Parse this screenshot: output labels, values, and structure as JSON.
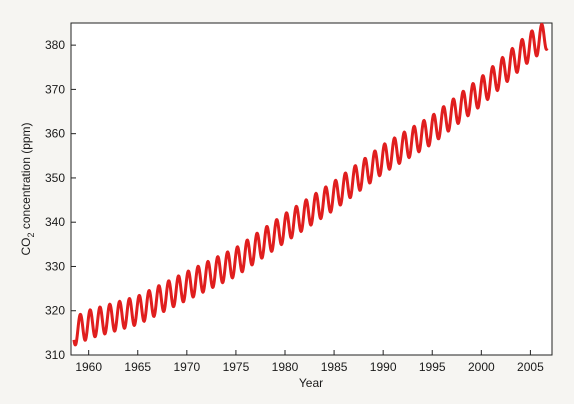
{
  "chart_data": {
    "type": "line",
    "title": "",
    "xlabel": "Year",
    "ylabel_main": "CO",
    "ylabel_sub": "2",
    "ylabel_rest": " concentration (ppm)",
    "xlim": [
      1958.2,
      2007.2
    ],
    "ylim": [
      310,
      385
    ],
    "xticks": [
      1960,
      1965,
      1970,
      1975,
      1980,
      1985,
      1990,
      1995,
      2000,
      2005
    ],
    "yticks": [
      310,
      320,
      330,
      340,
      350,
      360,
      370,
      380
    ],
    "grid": false,
    "line_color": "#e01e1e",
    "series": [
      {
        "x": [
          1958.5,
          1960,
          1965,
          1970,
          1975,
          1980,
          1985,
          1990,
          1995,
          2000,
          2005,
          2006.7
        ],
        "values": [
          315.3,
          316.9,
          320.1,
          325.6,
          331.0,
          338.7,
          346.0,
          354.3,
          360.9,
          369.6,
          379.8,
          382.3
        ]
      }
    ],
    "seasonal_amplitude_ppm": 3.2
  }
}
